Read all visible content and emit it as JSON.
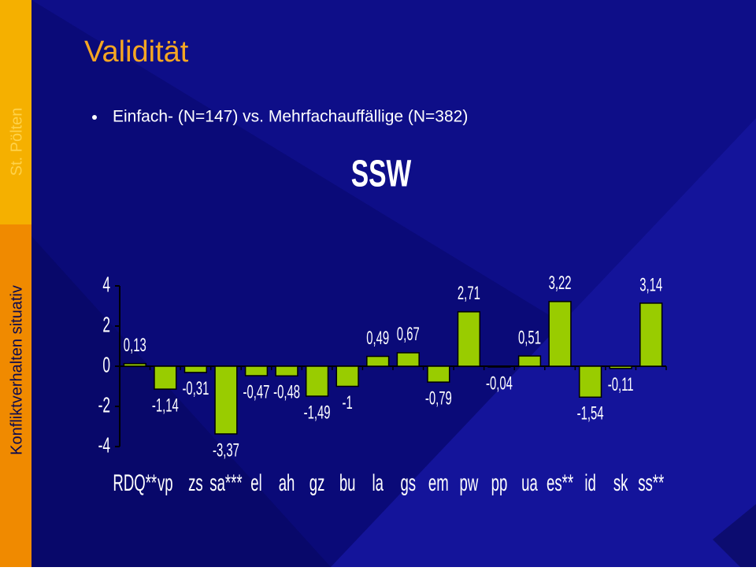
{
  "slide": {
    "title": "Validität",
    "bullet": "Einfach- (N=147) vs. Mehrfachauffällige (N=382)",
    "sidebar_top": "St. Pölten",
    "sidebar_bottom": "Konfliktverhalten situativ"
  },
  "chart_data": {
    "type": "bar",
    "title": "SSW",
    "categories": [
      "RDQ**",
      "vp",
      "zs",
      "sa***",
      "el",
      "ah",
      "gz",
      "bu",
      "la",
      "gs",
      "em",
      "pw",
      "pp",
      "ua",
      "es**",
      "id",
      "sk",
      "ss**"
    ],
    "values": [
      0.13,
      -1.14,
      -0.31,
      -3.37,
      -0.47,
      -0.48,
      -1.49,
      -1,
      0.49,
      0.67,
      -0.79,
      2.71,
      -0.04,
      0.51,
      3.22,
      -1.54,
      -0.11,
      3.14
    ],
    "value_labels": [
      "0,13",
      "-1,14",
      "-0,31",
      "-3,37",
      "-0,47",
      "-0,48",
      "-1,49",
      "-1",
      "0,49",
      "0,67",
      "-0,79",
      "2,71",
      "-0,04",
      "0,51",
      "3,22",
      "-1,54",
      "-0,11",
      "3,14"
    ],
    "color": "#99cc00",
    "ylim": [
      -4,
      4
    ],
    "yticks": [
      4,
      2,
      0,
      -2,
      -4
    ]
  }
}
